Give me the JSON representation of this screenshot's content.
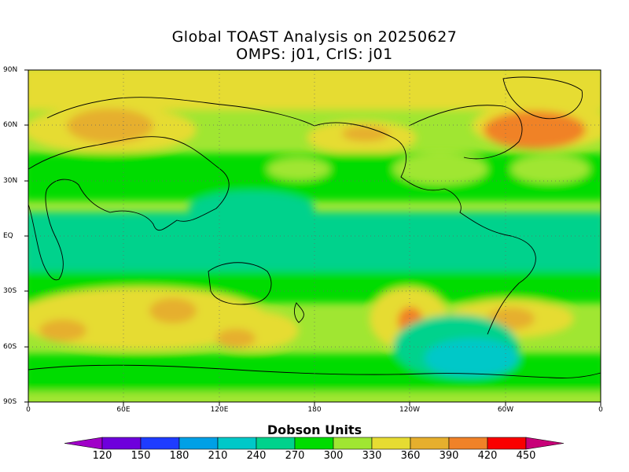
{
  "title": {
    "line1": "Global TOAST Analysis on 20250627",
    "line2": "OMPS: j01, CrIS: j01"
  },
  "map": {
    "lat_labels": [
      "90N",
      "60N",
      "30N",
      "EQ",
      "30S",
      "60S",
      "90S"
    ],
    "lon_labels": [
      "0",
      "60E",
      "120E",
      "180",
      "120W",
      "60W",
      "0"
    ]
  },
  "colorbar": {
    "title": "Dobson Units",
    "ticks": [
      "120",
      "150",
      "180",
      "210",
      "240",
      "270",
      "300",
      "330",
      "360",
      "390",
      "420",
      "450"
    ],
    "colors": [
      "#a000c8",
      "#6e00dc",
      "#1e3cff",
      "#00a0e6",
      "#00c8c8",
      "#00d28c",
      "#00dc00",
      "#a0e632",
      "#e6dc32",
      "#e6af2d",
      "#f08228",
      "#fa0000",
      "#c80078"
    ]
  },
  "chart_data": {
    "type": "heatmap",
    "title": "Global TOAST Analysis on 20250627",
    "subtitle": "OMPS: j01, CrIS: j01",
    "xlabel": "",
    "ylabel": "",
    "xlim": [
      0,
      360
    ],
    "ylim": [
      -90,
      90
    ],
    "grid": true,
    "colorbar_label": "Dobson Units",
    "levels": [
      120,
      150,
      180,
      210,
      240,
      270,
      300,
      330,
      360,
      390,
      420,
      450
    ]
  }
}
